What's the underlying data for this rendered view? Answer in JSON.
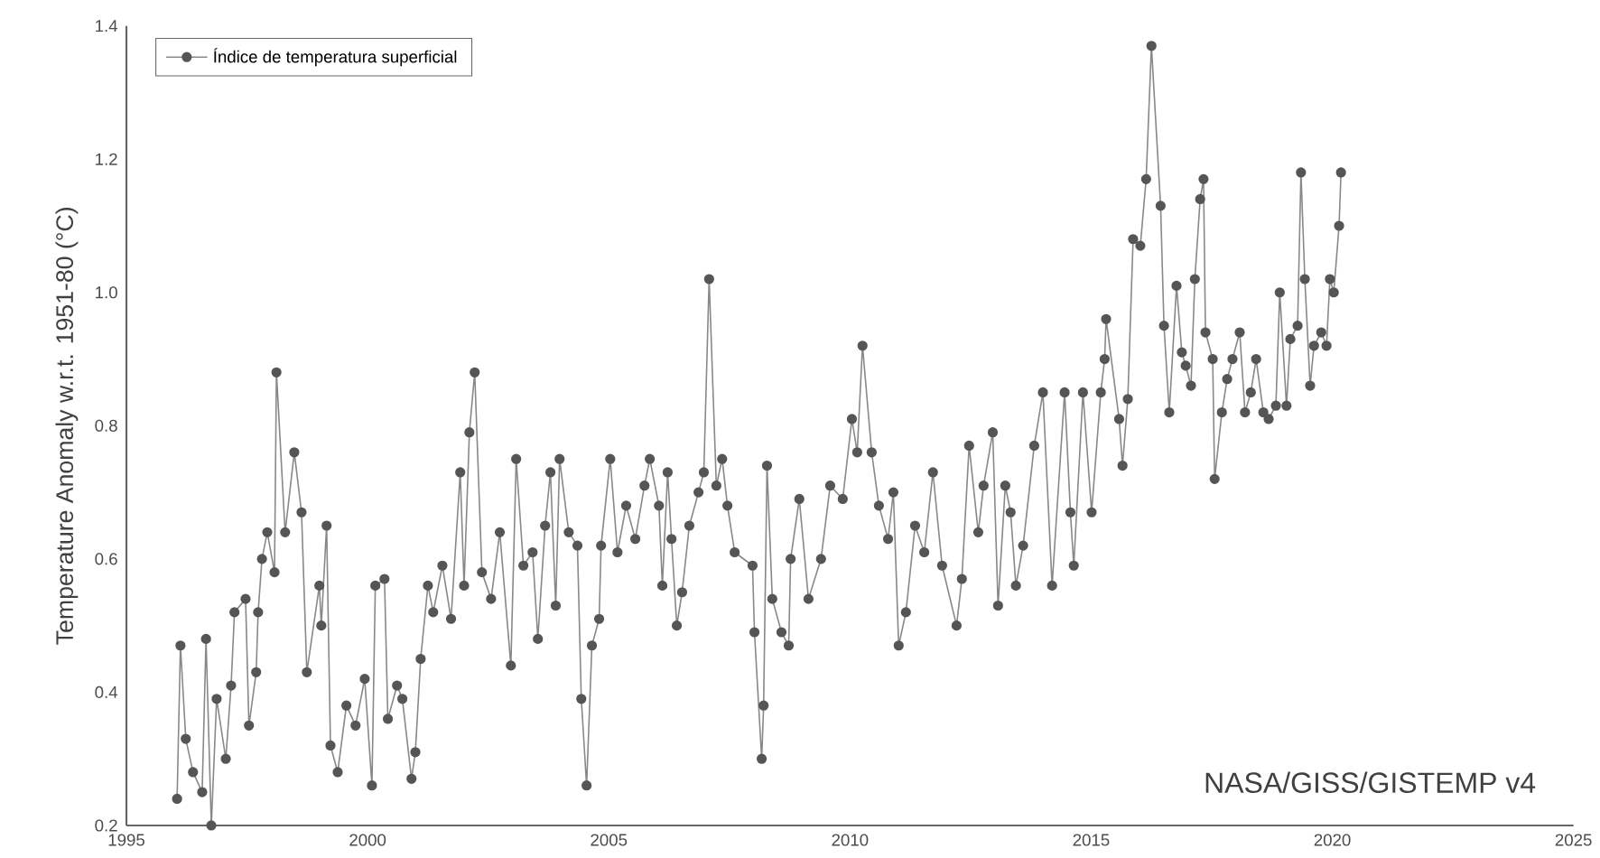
{
  "chart_data": {
    "type": "line",
    "ylabel": "Temperature Anomaly w.r.t. 1951-80 (°C)",
    "annotations": [
      "NASA/GISS/GISTEMP v4"
    ],
    "xlim": [
      1995,
      2025
    ],
    "xticks": [
      1995,
      2000,
      2005,
      2010,
      2015,
      2020,
      2025
    ],
    "ylim": [
      0.2,
      1.4
    ],
    "yticks": [
      0.2,
      0.4,
      0.6,
      0.8,
      {
        "value": 1.0,
        "label": "1.0"
      },
      1.2,
      1.4
    ],
    "grid": false,
    "legend": "top left",
    "marker": "circle",
    "line_style": "solid",
    "series": [
      {
        "name": "Índice de temperatura superficial",
        "color": "#555555",
        "x": [
          1996.05,
          1996.12,
          1996.23,
          1996.38,
          1996.57,
          1996.65,
          1996.76,
          1996.87,
          1997.06,
          1997.17,
          1997.24,
          1997.47,
          1997.54,
          1997.69,
          1997.73,
          1997.81,
          1997.92,
          1998.07,
          1998.11,
          1998.29,
          1998.48,
          1998.63,
          1998.74,
          1999.0,
          1999.04,
          1999.15,
          1999.23,
          1999.38,
          1999.56,
          1999.75,
          1999.94,
          2000.09,
          2000.16,
          2000.35,
          2000.42,
          2000.61,
          2000.72,
          2000.91,
          2000.99,
          2001.1,
          2001.25,
          2001.36,
          2001.55,
          2001.73,
          2001.92,
          2002.0,
          2002.11,
          2002.22,
          2002.37,
          2002.56,
          2002.74,
          2002.97,
          2003.08,
          2003.23,
          2003.42,
          2003.53,
          2003.68,
          2003.79,
          2003.9,
          2003.98,
          2004.17,
          2004.35,
          2004.43,
          2004.54,
          2004.65,
          2004.8,
          2004.84,
          2005.03,
          2005.18,
          2005.36,
          2005.55,
          2005.74,
          2005.85,
          2006.04,
          2006.11,
          2006.22,
          2006.3,
          2006.41,
          2006.52,
          2006.67,
          2006.86,
          2006.97,
          2007.08,
          2007.23,
          2007.35,
          2007.46,
          2007.61,
          2007.98,
          2008.02,
          2008.17,
          2008.21,
          2008.28,
          2008.39,
          2008.58,
          2008.73,
          2008.77,
          2008.95,
          2009.14,
          2009.4,
          2009.59,
          2009.85,
          2010.04,
          2010.15,
          2010.26,
          2010.45,
          2010.6,
          2010.79,
          2010.9,
          2011.01,
          2011.16,
          2011.35,
          2011.54,
          2011.72,
          2011.91,
          2012.21,
          2012.32,
          2012.47,
          2012.66,
          2012.77,
          2012.96,
          2013.07,
          2013.22,
          2013.33,
          2013.44,
          2013.59,
          2013.82,
          2014.0,
          2014.19,
          2014.45,
          2014.57,
          2014.64,
          2014.83,
          2015.01,
          2015.2,
          2015.28,
          2015.31,
          2015.58,
          2015.65,
          2015.76,
          2015.87,
          2016.02,
          2016.14,
          2016.25,
          2016.44,
          2016.51,
          2016.62,
          2016.77,
          2016.88,
          2016.96,
          2017.07,
          2017.15,
          2017.26,
          2017.33,
          2017.37,
          2017.52,
          2017.56,
          2017.71,
          2017.82,
          2017.93,
          2018.08,
          2018.19,
          2018.31,
          2018.42,
          2018.57,
          2018.68,
          2018.83,
          2018.91,
          2019.05,
          2019.13,
          2019.28,
          2019.35,
          2019.43,
          2019.54,
          2019.62,
          2019.77,
          2019.88,
          2019.95,
          2020.03,
          2020.14,
          2020.18
        ],
        "values": [
          0.24,
          0.47,
          0.33,
          0.28,
          0.25,
          0.48,
          0.2,
          0.39,
          0.3,
          0.41,
          0.52,
          0.54,
          0.35,
          0.43,
          0.52,
          0.6,
          0.64,
          0.58,
          0.88,
          0.64,
          0.76,
          0.67,
          0.43,
          0.56,
          0.5,
          0.65,
          0.32,
          0.28,
          0.38,
          0.35,
          0.42,
          0.26,
          0.56,
          0.57,
          0.36,
          0.41,
          0.39,
          0.27,
          0.31,
          0.45,
          0.56,
          0.52,
          0.59,
          0.51,
          0.73,
          0.56,
          0.79,
          0.88,
          0.58,
          0.54,
          0.64,
          0.44,
          0.75,
          0.59,
          0.61,
          0.48,
          0.65,
          0.73,
          0.53,
          0.75,
          0.64,
          0.62,
          0.39,
          0.26,
          0.47,
          0.51,
          0.62,
          0.75,
          0.61,
          0.68,
          0.63,
          0.71,
          0.75,
          0.68,
          0.56,
          0.73,
          0.63,
          0.5,
          0.55,
          0.65,
          0.7,
          0.73,
          1.02,
          0.71,
          0.75,
          0.68,
          0.61,
          0.59,
          0.49,
          0.3,
          0.38,
          0.74,
          0.54,
          0.49,
          0.47,
          0.6,
          0.69,
          0.54,
          0.6,
          0.71,
          0.69,
          0.81,
          0.76,
          0.92,
          0.76,
          0.68,
          0.63,
          0.7,
          0.47,
          0.52,
          0.65,
          0.61,
          0.73,
          0.59,
          0.5,
          0.57,
          0.77,
          0.64,
          0.71,
          0.79,
          0.53,
          0.71,
          0.67,
          0.56,
          0.62,
          0.77,
          0.85,
          0.56,
          0.85,
          0.67,
          0.59,
          0.85,
          0.67,
          0.85,
          0.9,
          0.96,
          0.81,
          0.74,
          0.84,
          1.08,
          1.07,
          1.17,
          1.37,
          1.13,
          0.95,
          0.82,
          1.01,
          0.91,
          0.89,
          0.86,
          1.02,
          1.14,
          1.17,
          0.94,
          0.9,
          0.72,
          0.82,
          0.87,
          0.9,
          0.94,
          0.82,
          0.85,
          0.9,
          0.82,
          0.81,
          0.83,
          1.0,
          0.83,
          0.93,
          0.95,
          1.18,
          1.02,
          0.86,
          0.92,
          0.94,
          0.92,
          1.02,
          1.0,
          1.1,
          1.18
        ]
      }
    ]
  }
}
